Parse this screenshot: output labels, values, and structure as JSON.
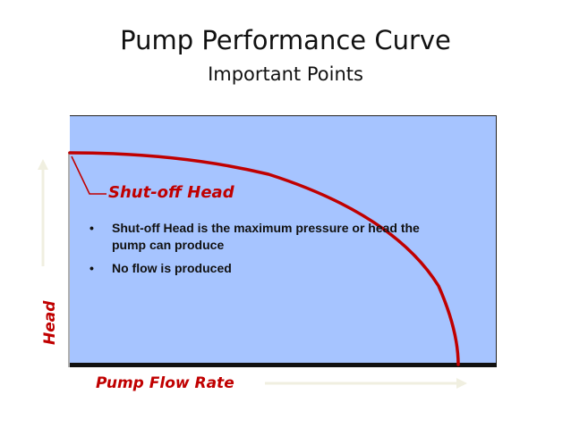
{
  "slide": {
    "title": "Pump Performance Curve",
    "subtitle": "Important Points"
  },
  "diagram": {
    "curve_label": "Shut-off Head",
    "y_axis_label": "Head",
    "x_axis_label": "Pump Flow Rate",
    "bullets": [
      "Shut-off Head is the maximum pressure or head the pump can produce",
      "No flow is produced"
    ],
    "colors": {
      "plot_background": "#a6c4ff",
      "curve": "#c00000",
      "label_text": "#c00000",
      "axis_arrows": "#f0efe0",
      "baseline": "#111111"
    }
  }
}
